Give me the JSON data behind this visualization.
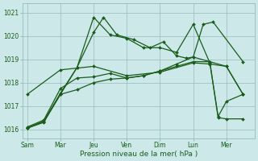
{
  "background_color": "#cce8e8",
  "grid_color": "#99bbbb",
  "line_color": "#1a5c1a",
  "xlabel": "Pression niveau de la mer( hPa )",
  "ylim": [
    1015.6,
    1021.4
  ],
  "yticks": [
    1016,
    1017,
    1018,
    1019,
    1020,
    1021
  ],
  "x_labels": [
    "Sam",
    "Mar",
    "Jeu",
    "Ven",
    "Dim",
    "Lun",
    "Mer"
  ],
  "x_tick_positions": [
    0,
    1,
    2,
    3,
    4,
    5,
    6
  ],
  "xlim": [
    -0.15,
    6.85
  ],
  "lines": [
    {
      "x": [
        0.0,
        0.5,
        1.0,
        1.5,
        2.0,
        2.3,
        2.7,
        3.2,
        3.7,
        4.1,
        4.5,
        4.8,
        5.0,
        5.3,
        5.6,
        6.5
      ],
      "y": [
        1016.05,
        1016.35,
        1017.5,
        1018.65,
        1020.15,
        1020.8,
        1020.05,
        1019.85,
        1019.5,
        1019.75,
        1019.15,
        1019.05,
        1019.1,
        1020.5,
        1020.6,
        1018.9
      ]
    },
    {
      "x": [
        0.0,
        0.5,
        1.0,
        1.5,
        2.0,
        2.5,
        3.0,
        3.5,
        4.0,
        4.5,
        5.0,
        5.5,
        5.75,
        6.0,
        6.5
      ],
      "y": [
        1016.05,
        1016.35,
        1017.55,
        1018.65,
        1020.8,
        1020.05,
        1019.9,
        1019.5,
        1019.5,
        1019.3,
        1020.5,
        1018.85,
        1016.55,
        1017.2,
        1017.5
      ]
    },
    {
      "x": [
        0.0,
        1.0,
        2.0,
        3.0,
        4.0,
        5.0,
        5.5,
        6.0,
        6.5
      ],
      "y": [
        1017.5,
        1018.55,
        1018.7,
        1018.3,
        1018.45,
        1018.85,
        1018.8,
        1018.7,
        1017.5
      ]
    },
    {
      "x": [
        0.0,
        0.5,
        1.0,
        1.5,
        2.0,
        2.5,
        3.0,
        3.5,
        4.0,
        4.5,
        5.0,
        5.5,
        5.75,
        6.0,
        6.5
      ],
      "y": [
        1016.1,
        1016.4,
        1017.75,
        1018.2,
        1018.25,
        1018.4,
        1018.2,
        1018.3,
        1018.5,
        1018.8,
        1019.1,
        1018.9,
        1016.5,
        1016.45,
        1016.45
      ]
    },
    {
      "x": [
        0.0,
        0.5,
        1.0,
        1.5,
        2.0,
        2.5,
        3.0,
        3.5,
        4.0,
        4.5,
        5.0,
        5.5,
        6.0,
        6.5
      ],
      "y": [
        1016.05,
        1016.3,
        1017.5,
        1017.7,
        1018.0,
        1018.15,
        1018.2,
        1018.3,
        1018.5,
        1018.7,
        1018.9,
        1018.9,
        1018.7,
        1017.5
      ]
    }
  ],
  "figsize": [
    3.2,
    2.0
  ],
  "dpi": 100,
  "markersize": 2.0,
  "linewidth": 0.9
}
